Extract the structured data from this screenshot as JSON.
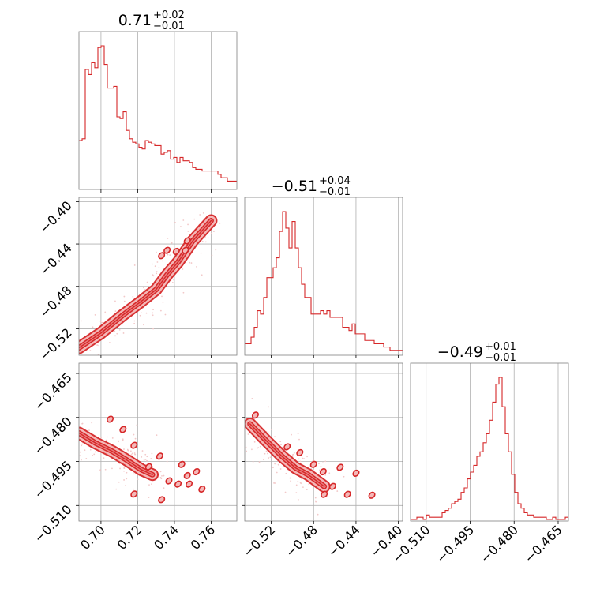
{
  "colors": {
    "line": "#d62728",
    "fill_light": "#f4b8b8",
    "fill_mid": "#ea7f7f",
    "scatter": "#f2c9c9",
    "grid": "#b0b0b0",
    "frame": "#808080"
  },
  "chart_data": {
    "type": "corner",
    "parameters": [
      {
        "range": [
          0.688,
          0.774
        ],
        "ticks": [
          "0.70",
          "0.72",
          "0.74",
          "0.76"
        ],
        "tick_values": [
          0.7,
          0.72,
          0.74,
          0.76
        ],
        "title": {
          "base": "0.71",
          "plus": "+0.02",
          "minus": "−0.01"
        }
      },
      {
        "range": [
          -0.545,
          -0.396
        ],
        "ticks": [
          "−0.52",
          "−0.48",
          "−0.44",
          "−0.40"
        ],
        "tick_values": [
          -0.52,
          -0.48,
          -0.44,
          -0.4
        ],
        "title": {
          "base": "−0.51",
          "plus": "+0.04",
          "minus": "−0.01"
        }
      },
      {
        "range": [
          -0.5153,
          -0.4615
        ],
        "ticks": [
          "−0.510",
          "−0.495",
          "−0.480",
          "−0.465"
        ],
        "tick_values": [
          -0.51,
          -0.495,
          -0.48,
          -0.465
        ],
        "title": {
          "base": "−0.49",
          "plus": "+0.01",
          "minus": "−0.01"
        }
      }
    ],
    "histograms": [
      {
        "param": 0,
        "bin_width": 0.00172,
        "counts": [
          28,
          29,
          70,
          67,
          74,
          71,
          83,
          84,
          73,
          59,
          59,
          60,
          42,
          41,
          45,
          34,
          29,
          27,
          26,
          24,
          23,
          28,
          27,
          26,
          25,
          25,
          20,
          21,
          22,
          17,
          18,
          15,
          18,
          16,
          16,
          15,
          12,
          11,
          11,
          10,
          10,
          10,
          10,
          10,
          8,
          6,
          6,
          4,
          4,
          4
        ]
      },
      {
        "param": 1,
        "bin_width": 0.00298,
        "counts": [
          3,
          3,
          5,
          8,
          13,
          12,
          17,
          23,
          23,
          26,
          29,
          37,
          43,
          38,
          32,
          40,
          32,
          26,
          21,
          17,
          17,
          12,
          12,
          12,
          13,
          12,
          13,
          11,
          11,
          11,
          11,
          8,
          8,
          7,
          9,
          6,
          6,
          6,
          4,
          4,
          4,
          3,
          3,
          3,
          2,
          2,
          1,
          1,
          1,
          1
        ]
      },
      {
        "param": 2,
        "bin_width": 0.001076,
        "counts": [
          0,
          0,
          1,
          1,
          0,
          2,
          1,
          1,
          1,
          1,
          3,
          4,
          5,
          7,
          8,
          9,
          12,
          14,
          18,
          21,
          24,
          28,
          30,
          34,
          38,
          44,
          52,
          60,
          63,
          50,
          38,
          30,
          20,
          12,
          7,
          5,
          3,
          2,
          2,
          1,
          1,
          1,
          1,
          0,
          0,
          1,
          0,
          0,
          0,
          1
        ]
      }
    ],
    "pairs": [
      {
        "x": 0,
        "y": 1,
        "band_centerline": [
          [
            0.688,
            -0.538
          ],
          [
            0.7,
            -0.524
          ],
          [
            0.712,
            -0.507
          ],
          [
            0.722,
            -0.494
          ],
          [
            0.73,
            -0.483
          ],
          [
            0.736,
            -0.469
          ],
          [
            0.742,
            -0.457
          ],
          [
            0.75,
            -0.437
          ],
          [
            0.76,
            -0.418
          ]
        ],
        "islands": [
          [
            0.733,
            -0.451
          ],
          [
            0.736,
            -0.446
          ],
          [
            0.741,
            -0.447
          ],
          [
            0.746,
            -0.446
          ],
          [
            0.747,
            -0.437
          ]
        ]
      },
      {
        "x": 0,
        "y": 2,
        "band_centerline": [
          [
            0.688,
            -0.4853
          ],
          [
            0.697,
            -0.4887
          ],
          [
            0.706,
            -0.4915
          ],
          [
            0.714,
            -0.4945
          ],
          [
            0.722,
            -0.4978
          ],
          [
            0.728,
            -0.4995
          ]
        ],
        "islands": [
          [
            0.705,
            -0.4806
          ],
          [
            0.712,
            -0.4841
          ],
          [
            0.718,
            -0.4895
          ],
          [
            0.726,
            -0.4968
          ],
          [
            0.732,
            -0.4932
          ],
          [
            0.737,
            -0.5016
          ],
          [
            0.742,
            -0.5027
          ],
          [
            0.744,
            -0.496
          ],
          [
            0.747,
            -0.4998
          ],
          [
            0.748,
            -0.5027
          ],
          [
            0.752,
            -0.4985
          ],
          [
            0.755,
            -0.5044
          ],
          [
            0.733,
            -0.508
          ],
          [
            0.718,
            -0.5061
          ]
        ]
      },
      {
        "x": 1,
        "y": 2,
        "band_centerline": [
          [
            -0.54,
            -0.4822
          ],
          [
            -0.525,
            -0.4878
          ],
          [
            -0.51,
            -0.4932
          ],
          [
            -0.497,
            -0.4972
          ],
          [
            -0.485,
            -0.4995
          ],
          [
            -0.47,
            -0.5035
          ]
        ],
        "islands": [
          [
            -0.535,
            -0.4792
          ],
          [
            -0.505,
            -0.49
          ],
          [
            -0.493,
            -0.492
          ],
          [
            -0.48,
            -0.496
          ],
          [
            -0.471,
            -0.4985
          ],
          [
            -0.462,
            -0.5035
          ],
          [
            -0.455,
            -0.497
          ],
          [
            -0.448,
            -0.5062
          ],
          [
            -0.44,
            -0.499
          ],
          [
            -0.425,
            -0.5065
          ],
          [
            -0.47,
            -0.5062
          ]
        ]
      }
    ],
    "grid": true
  }
}
